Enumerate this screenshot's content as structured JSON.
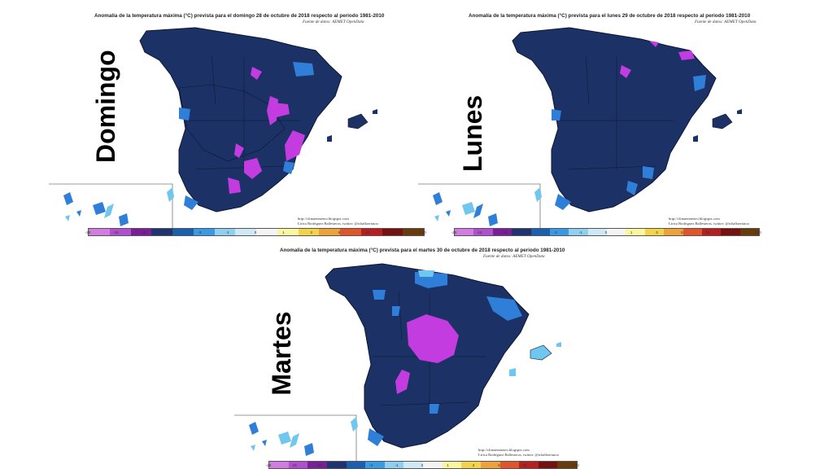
{
  "map_title": "Anomalía de la temperatura máxima (°C) prevista",
  "panels": [
    {
      "id": "domingo",
      "day_label": "Domingo",
      "title": "Anomalía de la temperatura máxima (°C) prevista para el domingo 28 de octubre de 2018 respecto al periodo 1981-2010",
      "source": "Fuente de datos: AEMET OpenData",
      "credit_url": "http://climaenmeteo.blogspot.com",
      "credit_author": "Lírica Rodríguez Ballesteros, twitter: @tchalloertatoo"
    },
    {
      "id": "lunes",
      "day_label": "Lunes",
      "title": "Anomalía de la temperatura máxima (°C) prevista para el lunes 29 de octubre de 2018 respecto al periodo 1981-2010",
      "source": "Fuente de datos: AEMET OpenData",
      "credit_url": "http://climaenmeteo.blogspot.com",
      "credit_author": "Lírica Rodríguez Ballesteros, twitter: @tchalloertatoo"
    },
    {
      "id": "martes",
      "day_label": "Martes",
      "title": "Anomalía de la temperatura máxima (°C) prevista para el martes 30 de octubre de 2018 respecto al periodo 1981-2010",
      "source": "Fuente de datos: AEMET OpenData",
      "credit_url": "http://climaenmeteo.blogspot.com",
      "credit_author": "Lírica Rodríguez Ballesteros, twitter: @tchalloertatoo"
    }
  ],
  "legend": {
    "ticks": [
      "-20",
      "-15",
      "-10",
      "-5",
      "-3",
      "-1",
      "0",
      "1",
      "3",
      "5",
      "10",
      "15",
      ">20"
    ],
    "colors": [
      "#d27be0",
      "#b04fd0",
      "#7a1e9a",
      "#1f3470",
      "#1a5fb0",
      "#3a9ae6",
      "#8fd0f2",
      "#cfe8f6",
      "#f4f4f4",
      "#fbf7a0",
      "#f3d34a",
      "#eea23b",
      "#e0552b",
      "#b81f1f",
      "#7a0f10",
      "#6a3b0a"
    ]
  },
  "colors": {
    "base_anomaly": "#1c3166",
    "border": "#0c1730",
    "mid_blue": "#2f7fd8",
    "light_blue": "#6fc6ee",
    "magenta": "#c33ce0"
  }
}
